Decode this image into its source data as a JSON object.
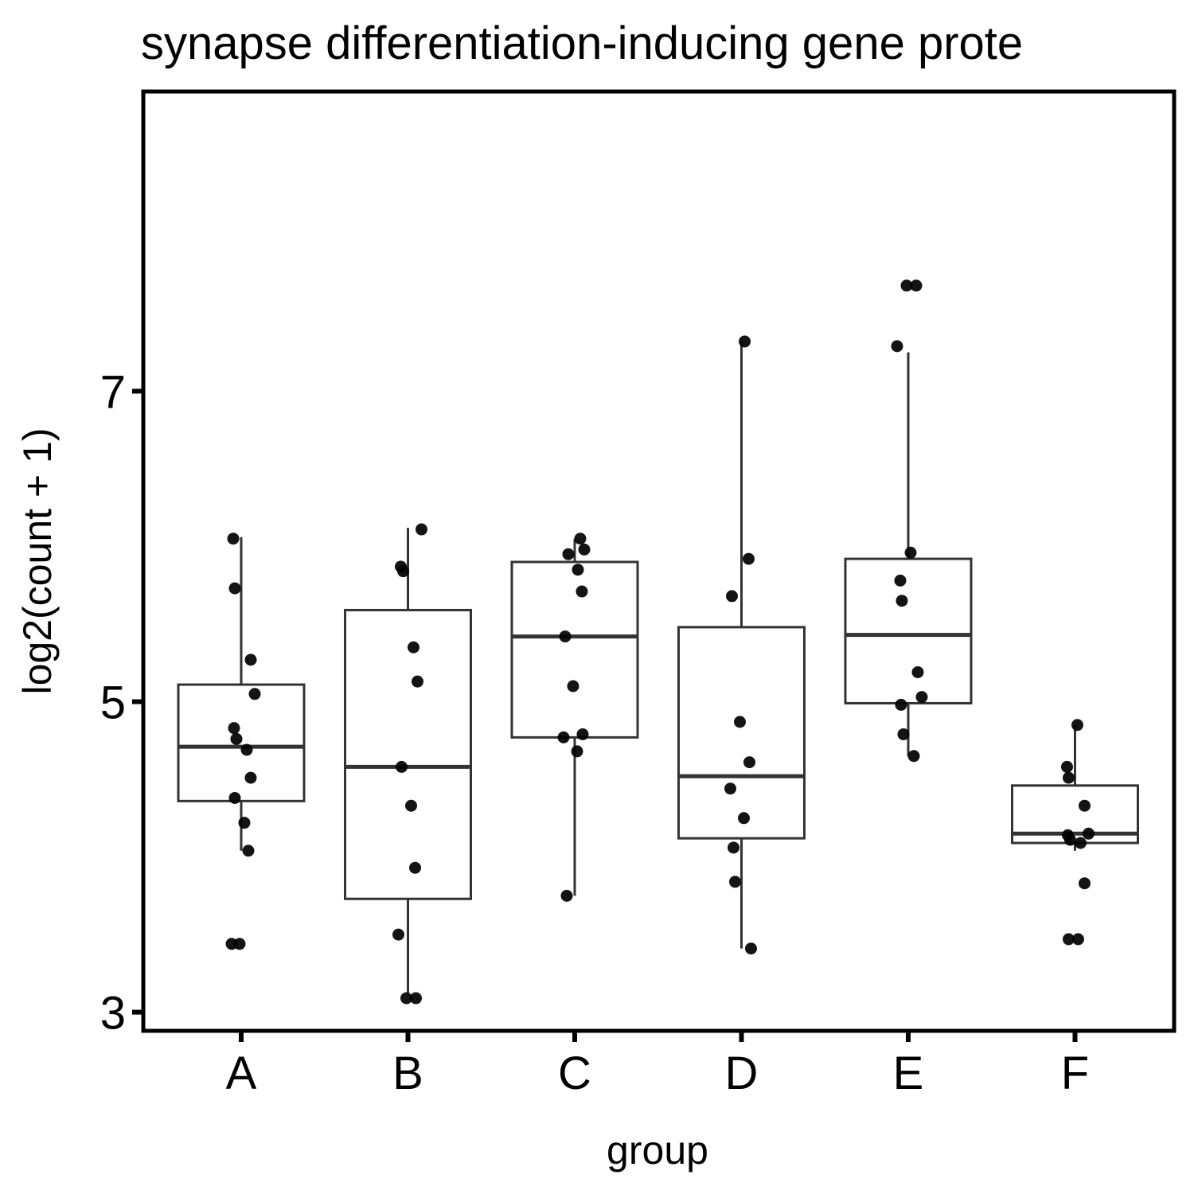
{
  "chart_data": {
    "type": "box",
    "title": "synapse differentiation-inducing gene prote",
    "xlabel": "group",
    "ylabel": "log2(count + 1)",
    "ylim": [
      2.88,
      8.93
    ],
    "yticks": [
      3,
      5,
      7
    ],
    "categories": [
      "A",
      "B",
      "C",
      "D",
      "E",
      "F"
    ],
    "colors": {
      "box_stroke": "#333333",
      "point": "#000000",
      "frame": "#000000"
    },
    "boxes": [
      {
        "category": "A",
        "whisker_low": 4.04,
        "q1": 4.36,
        "median": 4.71,
        "q3": 5.11,
        "whisker_high": 6.06
      },
      {
        "category": "B",
        "whisker_low": 3.12,
        "q1": 3.73,
        "median": 4.58,
        "q3": 5.59,
        "whisker_high": 6.12
      },
      {
        "category": "C",
        "whisker_low": 3.75,
        "q1": 4.77,
        "median": 5.42,
        "q3": 5.9,
        "whisker_high": 6.05
      },
      {
        "category": "D",
        "whisker_low": 3.41,
        "q1": 4.12,
        "median": 4.52,
        "q3": 5.48,
        "whisker_high": 7.32
      },
      {
        "category": "E",
        "whisker_low": 4.65,
        "q1": 4.99,
        "median": 5.43,
        "q3": 5.92,
        "whisker_high": 7.25
      },
      {
        "category": "F",
        "whisker_low": 4.04,
        "q1": 4.09,
        "median": 4.15,
        "q3": 4.46,
        "whisker_high": 4.85
      }
    ],
    "points": [
      {
        "category": "A",
        "values": [
          6.05,
          5.73,
          5.27,
          5.05,
          4.83,
          4.76,
          4.69,
          4.51,
          4.38,
          4.22,
          4.04,
          3.44,
          3.44
        ]
      },
      {
        "category": "B",
        "values": [
          6.11,
          5.87,
          5.84,
          5.35,
          5.13,
          4.58,
          4.33,
          3.93,
          3.5,
          3.09,
          3.09
        ]
      },
      {
        "category": "C",
        "values": [
          6.05,
          5.98,
          5.95,
          5.85,
          5.71,
          5.42,
          5.1,
          4.79,
          4.77,
          4.68,
          3.75
        ]
      },
      {
        "category": "D",
        "values": [
          7.32,
          5.92,
          5.68,
          4.87,
          4.61,
          4.44,
          4.25,
          4.06,
          3.84,
          3.41
        ]
      },
      {
        "category": "E",
        "values": [
          7.68,
          7.68,
          7.29,
          5.96,
          5.78,
          5.65,
          5.19,
          5.03,
          4.98,
          4.79,
          4.65
        ]
      },
      {
        "category": "F",
        "values": [
          4.85,
          4.58,
          4.51,
          4.33,
          4.15,
          4.14,
          4.11,
          4.09,
          3.83,
          3.47,
          3.47
        ]
      }
    ]
  }
}
